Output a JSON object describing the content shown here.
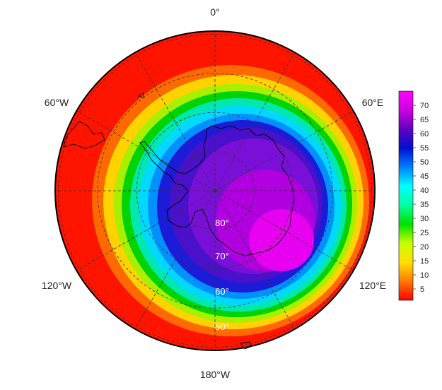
{
  "map": {
    "projection": "south-polar-stereographic",
    "longitude_labels": [
      {
        "id": "lon-0",
        "text": "0°"
      },
      {
        "id": "lon-60e",
        "text": "60°E"
      },
      {
        "id": "lon-120e",
        "text": "120°E"
      },
      {
        "id": "lon-180w",
        "text": "180°W"
      },
      {
        "id": "lon-120w",
        "text": "120°W"
      },
      {
        "id": "lon-60w",
        "text": "60°W"
      }
    ],
    "latitude_labels": [
      {
        "id": "lat-80",
        "text": "80°"
      },
      {
        "id": "lat-70",
        "text": "70°"
      },
      {
        "id": "lat-60",
        "text": "60°"
      },
      {
        "id": "lat-50",
        "text": "50°"
      }
    ],
    "graticule_latitudes": [
      80,
      70,
      60,
      50
    ],
    "graticule_longitudes_deg": [
      0,
      30,
      60,
      90,
      120,
      150,
      180,
      210,
      240,
      270,
      300,
      330
    ],
    "field": {
      "description": "scalar field shaded as a rainbow colour scale, maximum over East Antarctica, minimum toward the outer edge",
      "max_region_value": 70,
      "edge_value": 3
    },
    "colors": {
      "ocean_ring_edge": "#ff1a00",
      "land_outline": "#000000",
      "graticule": "#333333"
    }
  },
  "colorbar": {
    "ticks": [
      "5",
      "10",
      "15",
      "20",
      "25",
      "30",
      "35",
      "40",
      "45",
      "50",
      "55",
      "60",
      "65",
      "70"
    ],
    "min": 1,
    "max": 75,
    "stops": [
      "#ff0000",
      "#ff7a00",
      "#ffe000",
      "#c8ff00",
      "#00e000",
      "#00ffa0",
      "#00ffff",
      "#0080ff",
      "#0010d0",
      "#6000c0",
      "#cc00e0",
      "#ff00ff"
    ]
  }
}
